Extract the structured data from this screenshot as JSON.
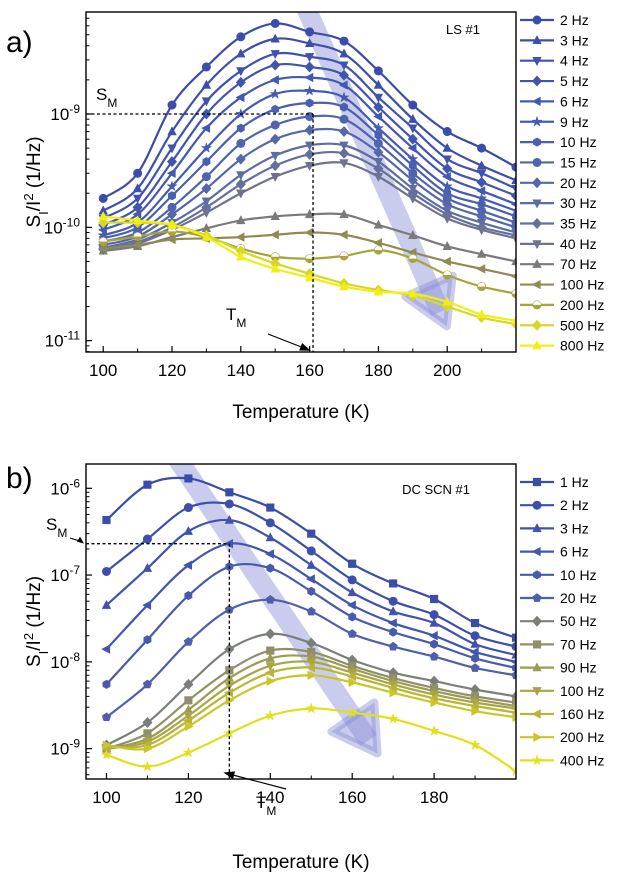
{
  "chart_data": [
    {
      "type": "line",
      "panel_label": "a)",
      "annotation": "LS #1",
      "xlabel": "Temperature (K)",
      "ylabel": {
        "base": "S",
        "sub": "I",
        "mid": "/I",
        "sup": "2",
        "unit": " (1/Hz)"
      },
      "xlim": [
        95,
        220
      ],
      "ylim_log10": [
        -11.1,
        -8.1
      ],
      "log_y": true,
      "x_ticks": [
        100,
        120,
        140,
        160,
        180,
        200
      ],
      "y_ticks": [
        {
          "value": 1e-11,
          "base": "10",
          "exp": "-11"
        },
        {
          "value": 1e-10,
          "base": "10",
          "exp": "-10"
        },
        {
          "value": 1e-09,
          "base": "10",
          "exp": "-9"
        }
      ],
      "legend_position": "right",
      "markers": {
        "S_M": {
          "base": "S",
          "sub": "M",
          "x": 161,
          "y": 1e-09
        },
        "T_M": {
          "base": "T",
          "sub": "M",
          "x": 161
        }
      },
      "x": [
        100,
        110,
        120,
        130,
        140,
        150,
        160,
        170,
        180,
        190,
        200,
        210,
        220
      ],
      "series": [
        {
          "name": "2 Hz",
          "color": "#3b4cab",
          "marker": "circle",
          "values": [
            1.8e-10,
            3e-10,
            1.2e-09,
            2.6e-09,
            4.8e-09,
            6.3e-09,
            5.3e-09,
            4.4e-09,
            2.4e-09,
            1.2e-09,
            7e-10,
            5e-10,
            3.4e-10
          ]
        },
        {
          "name": "3 Hz",
          "color": "#3d4fad",
          "marker": "triangle",
          "values": [
            1.4e-10,
            2.2e-10,
            7e-10,
            1.8e-09,
            3.4e-09,
            4.6e-09,
            4.2e-09,
            3.4e-09,
            1.8e-09,
            9e-10,
            5e-10,
            3.5e-10,
            2.6e-10
          ]
        },
        {
          "name": "4 Hz",
          "color": "#3f52ae",
          "marker": "triangle-down",
          "values": [
            1.2e-10,
            1.8e-10,
            5e-10,
            1.3e-09,
            2.4e-09,
            3.4e-09,
            3.2e-09,
            2.7e-09,
            1.4e-09,
            7.5e-10,
            4e-10,
            3e-10,
            2.2e-10
          ]
        },
        {
          "name": "5 Hz",
          "color": "#4155af",
          "marker": "diamond",
          "values": [
            1.05e-10,
            1.5e-10,
            3.8e-10,
            1e-09,
            1.9e-09,
            2.7e-09,
            2.6e-09,
            2.2e-09,
            1.15e-09,
            6e-10,
            3.3e-10,
            2.5e-10,
            1.9e-10
          ]
        },
        {
          "name": "6 Hz",
          "color": "#4358b0",
          "marker": "triangle-left",
          "values": [
            9.5e-11,
            1.3e-10,
            3e-10,
            7.5e-10,
            1.4e-09,
            2e-09,
            2.1e-09,
            1.8e-09,
            9.5e-10,
            5e-10,
            2.8e-10,
            2.1e-10,
            1.6e-10
          ]
        },
        {
          "name": "9 Hz",
          "color": "#465bb0",
          "marker": "star",
          "values": [
            8.5e-11,
            1.1e-10,
            2.3e-10,
            5e-10,
            1e-09,
            1.5e-09,
            1.6e-09,
            1.4e-09,
            7.5e-10,
            4e-10,
            2.3e-10,
            1.8e-10,
            1.4e-10
          ]
        },
        {
          "name": "10 Hz",
          "color": "#4a5fb0",
          "marker": "hexagon",
          "values": [
            8e-11,
            1e-10,
            1.9e-10,
            3.8e-10,
            7.5e-10,
            1.1e-09,
            1.25e-09,
            1.15e-09,
            6.5e-10,
            3.5e-10,
            2e-10,
            1.6e-10,
            1.25e-10
          ]
        },
        {
          "name": "15 Hz",
          "color": "#4f63ae",
          "marker": "circle",
          "values": [
            7.5e-11,
            9e-11,
            1.5e-10,
            2.8e-10,
            5.5e-10,
            8e-10,
            9.5e-10,
            9e-10,
            5.5e-10,
            3e-10,
            1.8e-10,
            1.4e-10,
            1.1e-10
          ]
        },
        {
          "name": "20 Hz",
          "color": "#5567ab",
          "marker": "diamond",
          "values": [
            7e-11,
            8.3e-11,
            1.3e-10,
            2.2e-10,
            4e-10,
            6e-10,
            7.2e-10,
            7e-10,
            4.6e-10,
            2.6e-10,
            1.6e-10,
            1.25e-10,
            1e-10
          ]
        },
        {
          "name": "30 Hz",
          "color": "#5c6ca5",
          "marker": "triangle-down",
          "values": [
            6.6e-11,
            7.8e-11,
            1.1e-10,
            1.7e-10,
            2.9e-10,
            4.3e-10,
            5.3e-10,
            5.3e-10,
            3.8e-10,
            2.2e-10,
            1.4e-10,
            1.1e-10,
            9e-11
          ]
        },
        {
          "name": "35 Hz",
          "color": "#646f9c",
          "marker": "diamond",
          "values": [
            6.4e-11,
            7.4e-11,
            1e-10,
            1.5e-10,
            2.4e-10,
            3.5e-10,
            4.4e-10,
            4.5e-10,
            3.3e-10,
            2e-10,
            1.3e-10,
            1e-10,
            8.5e-11
          ]
        },
        {
          "name": "40 Hz",
          "color": "#6c7290",
          "marker": "triangle-down",
          "values": [
            6.3e-11,
            7.2e-11,
            9.5e-11,
            1.35e-10,
            2e-10,
            2.8e-10,
            3.5e-10,
            3.7e-10,
            2.8e-10,
            1.8e-10,
            1.2e-10,
            9.5e-11,
            8e-11
          ]
        },
        {
          "name": "70 Hz",
          "color": "#7a7a7a",
          "marker": "triangle",
          "values": [
            6.2e-11,
            6.8e-11,
            8.2e-11,
            9.8e-11,
            1.15e-10,
            1.25e-10,
            1.3e-10,
            1.3e-10,
            1.05e-10,
            8.5e-11,
            6.8e-11,
            5.8e-11,
            5e-11
          ]
        },
        {
          "name": "100 Hz",
          "color": "#8f8b55",
          "marker": "triangle-left",
          "values": [
            6.5e-11,
            7e-11,
            7.8e-11,
            8e-11,
            8.2e-11,
            8.6e-11,
            9e-11,
            8.6e-11,
            7.3e-11,
            6e-11,
            5e-11,
            4.3e-11,
            3.7e-11
          ]
        },
        {
          "name": "200 Hz",
          "color": "#a8a43a",
          "marker": "circle-half",
          "values": [
            7.5e-11,
            8.3e-11,
            9.2e-11,
            8.2e-11,
            6.5e-11,
            5.5e-11,
            5.3e-11,
            5.6e-11,
            6.3e-11,
            5.3e-11,
            3.8e-11,
            3e-11,
            2.6e-11
          ]
        },
        {
          "name": "500 Hz",
          "color": "#d8d626",
          "marker": "diamond",
          "values": [
            1.1e-10,
            1.1e-10,
            1.05e-10,
            8.5e-11,
            6.2e-11,
            4.8e-11,
            3.9e-11,
            3.2e-11,
            2.8e-11,
            2.5e-11,
            2e-11,
            1.6e-11,
            1.4e-11
          ]
        },
        {
          "name": "800 Hz",
          "color": "#f1ee12",
          "marker": "triangle",
          "values": [
            1.25e-10,
            1.15e-10,
            1.05e-10,
            8.2e-11,
            5.5e-11,
            4.3e-11,
            3.6e-11,
            3e-11,
            2.7e-11,
            2.6e-11,
            2.2e-11,
            1.7e-11,
            1.5e-11
          ]
        }
      ]
    },
    {
      "type": "line",
      "panel_label": "b)",
      "annotation": "DC SCN #1",
      "xlabel": "Temperature (K)",
      "ylabel": {
        "base": "S",
        "sub": "I",
        "mid": "/I",
        "sup": "2",
        "unit": " (1/Hz)"
      },
      "xlim": [
        95,
        200
      ],
      "ylim_log10": [
        -9.35,
        -5.72
      ],
      "log_y": true,
      "x_ticks": [
        100,
        120,
        140,
        160,
        180
      ],
      "y_ticks": [
        {
          "value": 1e-09,
          "base": "10",
          "exp": "-9"
        },
        {
          "value": 1e-08,
          "base": "10",
          "exp": "-8"
        },
        {
          "value": 1e-07,
          "base": "10",
          "exp": "-7"
        },
        {
          "value": 1e-06,
          "base": "10",
          "exp": "-6"
        }
      ],
      "legend_position": "right",
      "markers": {
        "S_M": {
          "base": "S",
          "sub": "M",
          "x": 130,
          "y": 2.3e-07
        },
        "T_M": {
          "base": "T",
          "sub": "M",
          "x": 130
        }
      },
      "x": [
        100,
        110,
        120,
        130,
        140,
        150,
        160,
        170,
        180,
        190,
        200
      ],
      "series": [
        {
          "name": "1 Hz",
          "color": "#3b4cab",
          "marker": "square",
          "values": [
            4.3e-07,
            1.1e-06,
            1.3e-06,
            9e-07,
            6e-07,
            3e-07,
            1.35e-07,
            8e-08,
            5.3e-08,
            2.8e-08,
            1.9e-08
          ]
        },
        {
          "name": "2 Hz",
          "color": "#3d4fad",
          "marker": "circle",
          "values": [
            1.1e-07,
            2.6e-07,
            6e-07,
            6.6e-07,
            4e-07,
            1.9e-07,
            8.8e-08,
            5e-08,
            3.5e-08,
            2e-08,
            1.5e-08
          ]
        },
        {
          "name": "3 Hz",
          "color": "#4052ad",
          "marker": "triangle",
          "values": [
            4.5e-08,
            1.2e-07,
            3.2e-07,
            4.3e-07,
            2.7e-07,
            1.3e-07,
            6.3e-08,
            3.8e-08,
            2.8e-08,
            1.6e-08,
            1.2e-08
          ]
        },
        {
          "name": "6 Hz",
          "color": "#4356ae",
          "marker": "triangle-left",
          "values": [
            1.4e-08,
            4.5e-08,
            1.3e-07,
            2.3e-07,
            1.75e-07,
            9e-08,
            4.5e-08,
            2.8e-08,
            2e-08,
            1.3e-08,
            1e-08
          ]
        },
        {
          "name": "10 Hz",
          "color": "#485aae",
          "marker": "hexagon",
          "values": [
            5.5e-09,
            1.8e-08,
            5.8e-08,
            1.25e-07,
            1.2e-07,
            6.5e-08,
            3.3e-08,
            2.2e-08,
            1.6e-08,
            1.1e-08,
            8.5e-09
          ]
        },
        {
          "name": "20 Hz",
          "color": "#4f5fa9",
          "marker": "pentagon",
          "values": [
            2.3e-09,
            5.5e-09,
            1.7e-08,
            4e-08,
            5.2e-08,
            3.8e-08,
            2.1e-08,
            1.5e-08,
            1.15e-08,
            8.5e-09,
            7e-09
          ]
        },
        {
          "name": "50 Hz",
          "color": "#7b7f7a",
          "marker": "diamond",
          "values": [
            1.1e-09,
            2e-09,
            5.5e-09,
            1.4e-08,
            2.1e-08,
            1.65e-08,
            1.05e-08,
            7.5e-09,
            6e-09,
            4.8e-09,
            4e-09
          ]
        },
        {
          "name": "70 Hz",
          "color": "#8f8f6a",
          "marker": "square",
          "values": [
            1e-09,
            1.5e-09,
            3.6e-09,
            8e-09,
            1.35e-08,
            1.3e-08,
            9e-09,
            6.5e-09,
            5e-09,
            4e-09,
            3.4e-09
          ]
        },
        {
          "name": "90 Hz",
          "color": "#9c9a55",
          "marker": "triangle",
          "values": [
            1e-09,
            1.3e-09,
            2.8e-09,
            6.5e-09,
            1.1e-08,
            1.15e-08,
            8.3e-09,
            6e-09,
            4.6e-09,
            3.7e-09,
            3.1e-09
          ]
        },
        {
          "name": "100 Hz",
          "color": "#a8a644",
          "marker": "triangle-down",
          "values": [
            1e-09,
            1.2e-09,
            2.4e-09,
            5.3e-09,
            9e-09,
            1e-08,
            7.5e-09,
            5.5e-09,
            4.2e-09,
            3.4e-09,
            2.9e-09
          ]
        },
        {
          "name": "160 Hz",
          "color": "#b7b437",
          "marker": "triangle-left",
          "values": [
            1.05e-09,
            1.1e-09,
            2.1e-09,
            4.4e-09,
            7.5e-09,
            8.6e-09,
            6.8e-09,
            5e-09,
            3.8e-09,
            3.1e-09,
            2.6e-09
          ]
        },
        {
          "name": "200 Hz",
          "color": "#c9c62a",
          "marker": "triangle-right",
          "values": [
            1.1e-09,
            1e-09,
            1.8e-09,
            3.6e-09,
            6e-09,
            7e-09,
            5.8e-09,
            4.4e-09,
            3.4e-09,
            2.7e-09,
            2.3e-09
          ]
        },
        {
          "name": "400 Hz",
          "color": "#e2e01c",
          "marker": "star",
          "values": [
            8.5e-10,
            6.2e-10,
            9e-10,
            1.5e-09,
            2.4e-09,
            2.9e-09,
            2.6e-09,
            2.2e-09,
            1.6e-09,
            1.1e-09,
            5.5e-10
          ]
        }
      ]
    }
  ]
}
